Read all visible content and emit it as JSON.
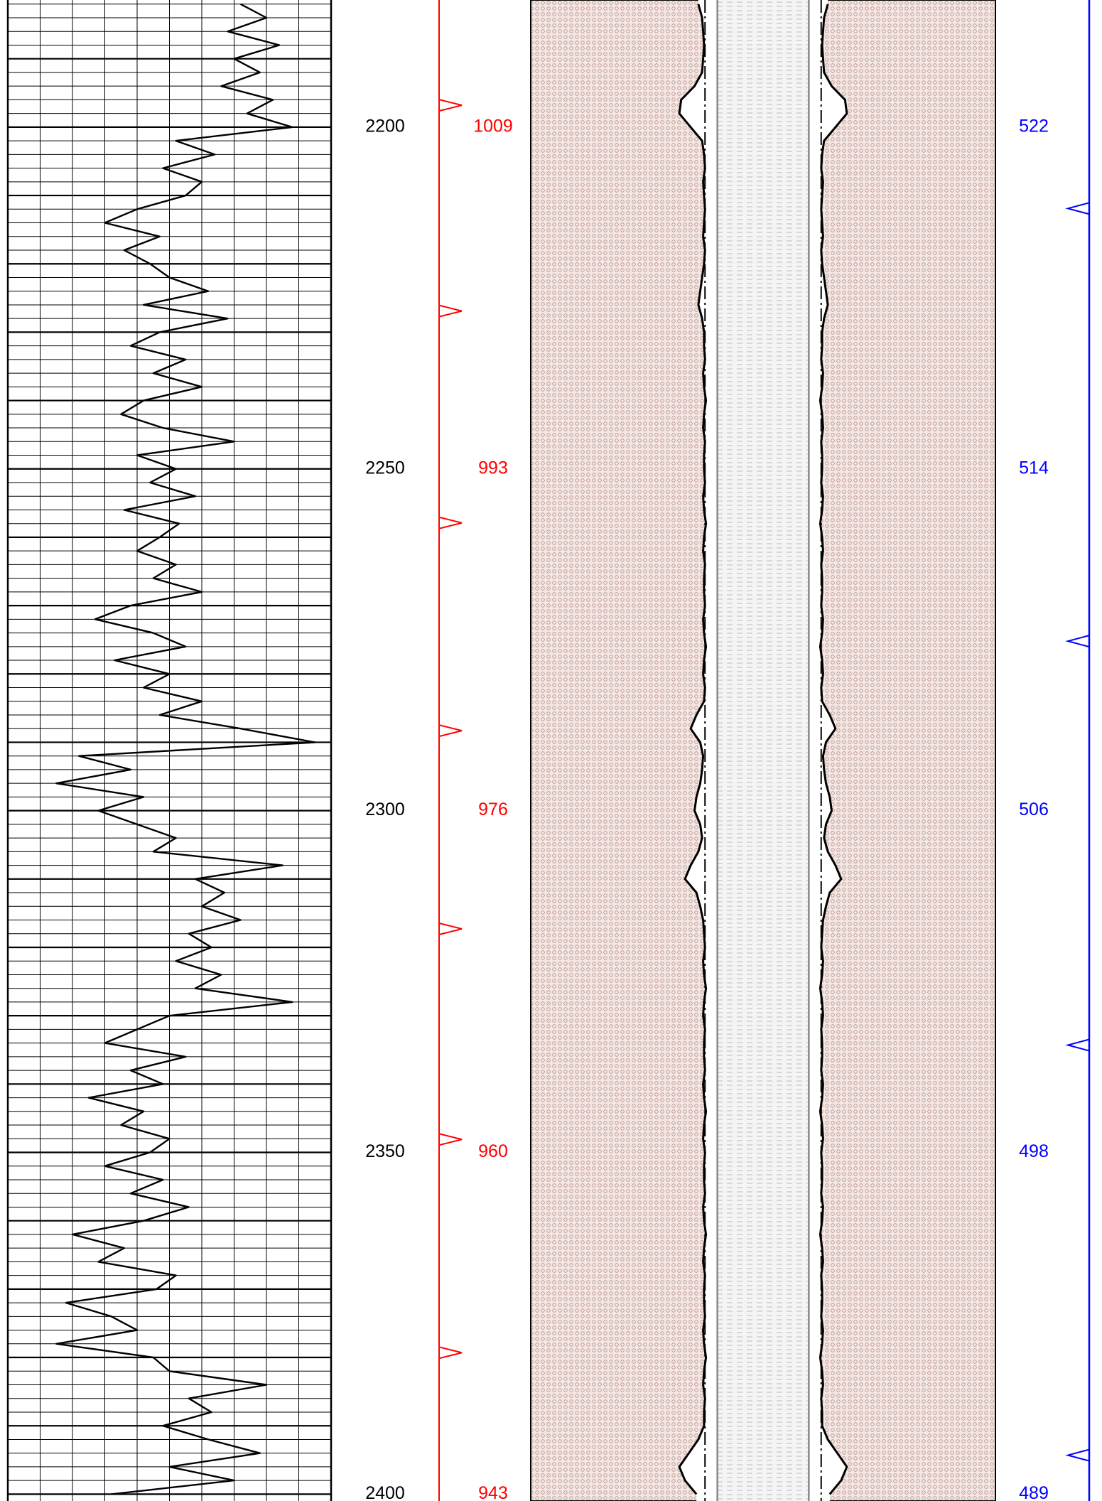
{
  "chart_data": {
    "type": "well-log",
    "ylim": [
      2181.4,
      2401.0
    ],
    "yticks": [
      2200,
      2250,
      2300,
      2350,
      2400
    ],
    "y_grid_major": [
      2190,
      2200,
      2210,
      2220,
      2230,
      2240,
      2250,
      2260,
      2270,
      2280,
      2290,
      2300,
      2310,
      2320,
      2330,
      2340,
      2350,
      2360,
      2370,
      2380,
      2390,
      2400
    ],
    "y_grid_minor": [
      2182,
      2184,
      2186,
      2188,
      2192,
      2194,
      2196,
      2198,
      2202,
      2204,
      2206,
      2208,
      2212,
      2214,
      2216,
      2218,
      2222,
      2224,
      2226,
      2228,
      2232,
      2234,
      2236,
      2238,
      2242,
      2244,
      2246,
      2248,
      2252,
      2254,
      2256,
      2258,
      2262,
      2264,
      2266,
      2268,
      2272,
      2274,
      2276,
      2278,
      2282,
      2284,
      2286,
      2288,
      2292,
      2294,
      2296,
      2298,
      2302,
      2304,
      2306,
      2308,
      2312,
      2314,
      2316,
      2318,
      2322,
      2324,
      2326,
      2328,
      2332,
      2334,
      2336,
      2338,
      2342,
      2344,
      2346,
      2348,
      2352,
      2354,
      2356,
      2358,
      2362,
      2364,
      2366,
      2368,
      2372,
      2374,
      2376,
      2378,
      2382,
      2384,
      2386,
      2388,
      2392,
      2394,
      2396,
      2398
    ],
    "curve": {
      "color": "#000000",
      "xlim": [
        0,
        100
      ],
      "xticks": [
        0,
        10,
        20,
        30,
        40,
        50,
        60,
        70,
        80,
        90,
        100
      ],
      "depth": [
        2182,
        2184,
        2186,
        2188,
        2190,
        2192,
        2194,
        2196,
        2198,
        2200,
        2202,
        2204,
        2206,
        2208,
        2210,
        2212,
        2214,
        2216,
        2218,
        2220,
        2222,
        2224,
        2226,
        2228,
        2230,
        2232,
        2234,
        2236,
        2238,
        2240,
        2242,
        2244,
        2246,
        2248,
        2250,
        2252,
        2254,
        2256,
        2258,
        2260,
        2262,
        2264,
        2266,
        2268,
        2270,
        2272,
        2274,
        2276,
        2278,
        2280,
        2282,
        2284,
        2286,
        2288,
        2290,
        2292,
        2294,
        2296,
        2298,
        2300,
        2302,
        2304,
        2306,
        2308,
        2310,
        2312,
        2314,
        2316,
        2318,
        2320,
        2322,
        2324,
        2326,
        2328,
        2330,
        2332,
        2334,
        2336,
        2338,
        2340,
        2342,
        2344,
        2346,
        2348,
        2350,
        2352,
        2354,
        2356,
        2358,
        2360,
        2362,
        2364,
        2366,
        2368,
        2370,
        2372,
        2374,
        2376,
        2378,
        2380,
        2382,
        2384,
        2386,
        2388,
        2390,
        2392,
        2394,
        2396,
        2398,
        2400
      ],
      "values": [
        72,
        80,
        68,
        84,
        70,
        78,
        66,
        82,
        74,
        88,
        52,
        64,
        48,
        60,
        55,
        40,
        30,
        47,
        36,
        44,
        50,
        62,
        42,
        68,
        47,
        38,
        55,
        45,
        60,
        42,
        35,
        48,
        70,
        40,
        52,
        44,
        58,
        36,
        53,
        47,
        40,
        52,
        45,
        60,
        38,
        27,
        45,
        55,
        33,
        50,
        42,
        60,
        47,
        72,
        95,
        22,
        38,
        15,
        42,
        28,
        40,
        52,
        45,
        85,
        58,
        67,
        60,
        72,
        56,
        63,
        52,
        66,
        58,
        88,
        50,
        40,
        30,
        55,
        38,
        48,
        25,
        42,
        35,
        50,
        44,
        30,
        48,
        38,
        56,
        42,
        20,
        36,
        28,
        52,
        46,
        18,
        32,
        40,
        15,
        45,
        50,
        80,
        56,
        63,
        48,
        62,
        78,
        50,
        70,
        32
      ]
    },
    "borehole": {
      "xlim": [
        -24.4,
        24.4
      ],
      "bit_size": 6.1,
      "casing": 4.8,
      "caliper": [
        6.8,
        6.4,
        6.3,
        6.2,
        6.3,
        6.4,
        7.2,
        8.6,
        8.8,
        7.6,
        6.4,
        6.2,
        6.1,
        6.3,
        6.2,
        6.1,
        6.2,
        6.3,
        6.1,
        6.2,
        6.4,
        6.6,
        6.8,
        6.4,
        6.2,
        6.2,
        6.1,
        6.3,
        6.2,
        6.0,
        6.2,
        6.3,
        6.1,
        6.2,
        6.2,
        6.1,
        6.3,
        6.2,
        6.0,
        6.2,
        6.3,
        6.1,
        6.2,
        6.2,
        6.1,
        6.3,
        6.2,
        6.0,
        6.2,
        6.3,
        6.1,
        6.2,
        7.0,
        7.6,
        6.6,
        6.3,
        6.4,
        6.6,
        7.0,
        7.2,
        6.6,
        6.4,
        6.8,
        7.6,
        8.2,
        7.0,
        6.6,
        6.3,
        6.2,
        6.1,
        6.3,
        6.2,
        6.0,
        6.2,
        6.3,
        6.1,
        6.2,
        6.2,
        6.1,
        6.3,
        6.2,
        6.0,
        6.2,
        6.3,
        6.1,
        6.2,
        6.2,
        6.1,
        6.3,
        6.2,
        6.0,
        6.2,
        6.3,
        6.1,
        6.2,
        6.2,
        6.1,
        6.3,
        6.2,
        6.0,
        6.2,
        6.3,
        6.1,
        6.2,
        6.2,
        6.8,
        7.8,
        8.8,
        8.2,
        7.0
      ]
    },
    "red_scale": {
      "color": "#ff0000",
      "labels": [
        1009,
        993,
        976,
        960,
        943
      ],
      "markers": [
        2196.8,
        2226.9,
        2257.9,
        2288.3,
        2317.3,
        2348.1,
        2379.3
      ]
    },
    "blue_scale": {
      "color": "#0000ff",
      "labels": [
        522,
        514,
        506,
        498,
        489
      ],
      "markers": [
        2211.9,
        2275.2,
        2334.3,
        2394.3
      ]
    }
  }
}
